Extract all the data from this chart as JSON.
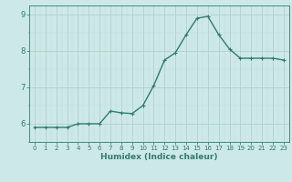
{
  "x": [
    0,
    1,
    2,
    3,
    4,
    5,
    6,
    7,
    8,
    9,
    10,
    11,
    12,
    13,
    14,
    15,
    16,
    17,
    18,
    19,
    20,
    21,
    22,
    23
  ],
  "y": [
    5.9,
    5.9,
    5.9,
    5.9,
    6.0,
    6.0,
    6.0,
    6.35,
    6.3,
    6.28,
    6.5,
    7.05,
    7.75,
    7.95,
    8.45,
    8.9,
    8.95,
    8.45,
    8.05,
    7.8,
    7.8,
    7.8,
    7.8,
    7.75
  ],
  "line_color": "#2e7d6e",
  "marker": "+",
  "marker_size": 3,
  "line_width": 1.0,
  "xlabel": "Humidex (Indice chaleur)",
  "ylim": [
    5.5,
    9.25
  ],
  "xlim": [
    -0.5,
    23.5
  ],
  "yticks": [
    6,
    7,
    8,
    9
  ],
  "xticks": [
    0,
    1,
    2,
    3,
    4,
    5,
    6,
    7,
    8,
    9,
    10,
    11,
    12,
    13,
    14,
    15,
    16,
    17,
    18,
    19,
    20,
    21,
    22,
    23
  ],
  "bg_color": "#cde8e8",
  "grid_color_major": "#aacece",
  "grid_color_minor": "#bcdada",
  "xlabel_color": "#2e7d6e",
  "tick_color": "#2e7d6e",
  "axis_color": "#2e7d6e"
}
